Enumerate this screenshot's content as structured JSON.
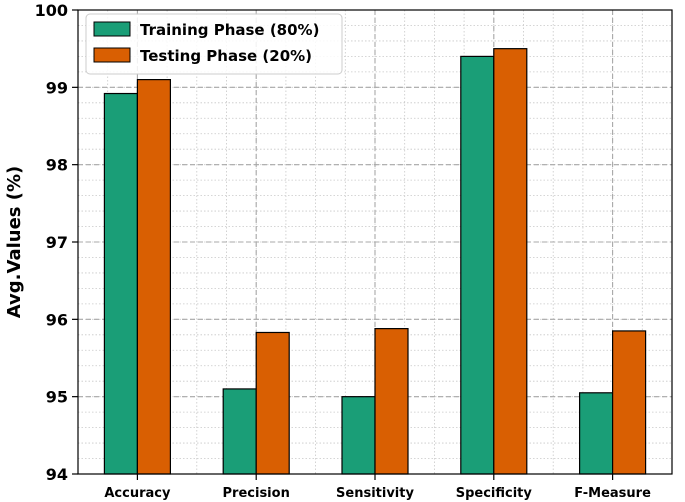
{
  "chart_data": {
    "type": "bar",
    "categories": [
      "Accuracy",
      "Precision",
      "Sensitivity",
      "Specificity",
      "F-Measure"
    ],
    "series": [
      {
        "name": "Training Phase (80%)",
        "color": "#1a9e77",
        "values": [
          98.92,
          95.1,
          95.0,
          99.4,
          95.05
        ]
      },
      {
        "name": "Testing Phase (20%)",
        "color": "#d95f02",
        "values": [
          99.1,
          95.83,
          95.88,
          99.5,
          95.85
        ]
      }
    ],
    "title": "",
    "xlabel": "",
    "ylabel": "Avg.Values (%)",
    "ylim": [
      94,
      100
    ],
    "yticks": [
      "94",
      "95",
      "96",
      "97",
      "98",
      "99",
      "100"
    ],
    "grid": true,
    "legend_position": "top-left"
  }
}
